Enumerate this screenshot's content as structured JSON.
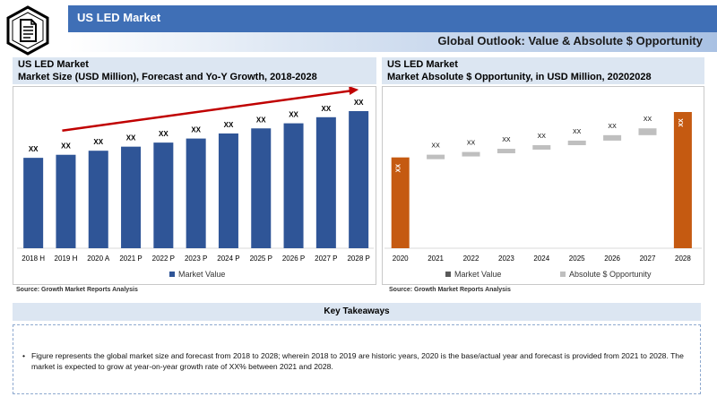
{
  "header": {
    "title": "US LED Market",
    "subtitle": "Global Outlook: Value & Absolute $ Opportunity",
    "logo_icon": "document-icon"
  },
  "left_panel": {
    "title_line1": "US LED Market",
    "title_line2": "Market Size (USD Million), Forecast and Yo-Y Growth, 2018-2028",
    "source": "Source: Growth Market Reports Analysis"
  },
  "right_panel": {
    "title_line1": "US LED Market",
    "title_line2": "Market Absolute $ Opportunity, in USD Million, 20202028",
    "source": "Source: Growth Market Reports Analysis"
  },
  "takeaways": {
    "title": "Key Takeaways",
    "bullet": "•",
    "text": "Figure represents the global market size and forecast from 2018 to 2028; wherein 2018 to 2019 are historic years, 2020 is the base/actual year and forecast is provided from 2021 to 2028. The market is expected to grow at year-on-year growth rate of XX% between 2021 and 2028."
  },
  "colors": {
    "header_blue": "#3f6fb6",
    "bar_blue": "#2f5597",
    "bar_orange": "#c55a11",
    "opportunity_gray": "#bfbfbf",
    "arrow_red": "#c00000"
  },
  "chart_data": [
    {
      "type": "bar",
      "categories": [
        "2018 H",
        "2019 H",
        "2020 A",
        "2021 P",
        "2022 P",
        "2023 P",
        "2024 P",
        "2025 P",
        "2026 P",
        "2027 P",
        "2028 P"
      ],
      "series": [
        {
          "name": "Market Value",
          "values": [
            89,
            92,
            96,
            100,
            104,
            108,
            113,
            118,
            123,
            129,
            135
          ]
        }
      ],
      "data_labels": [
        "XX",
        "XX",
        "XX",
        "XX",
        "XX",
        "XX",
        "XX",
        "XX",
        "XX",
        "XX",
        "XX"
      ],
      "ylim": [
        0,
        150
      ],
      "legend": "bottom",
      "trend_arrow": "increasing"
    },
    {
      "type": "bar",
      "subtype": "waterfall",
      "categories": [
        "2020",
        "2021",
        "2022",
        "2023",
        "2024",
        "2025",
        "2026",
        "2027",
        "2028"
      ],
      "series": [
        {
          "name": "Market Value",
          "values": [
            100,
            null,
            null,
            null,
            null,
            null,
            null,
            null,
            150
          ]
        },
        {
          "name": "Absolute $ Opportunity",
          "values": [
            null,
            3,
            3,
            3.5,
            4,
            5,
            6,
            7.5,
            null
          ]
        }
      ],
      "data_labels": [
        "XX",
        "XX",
        "XX",
        "XX",
        "XX",
        "XX",
        "XX",
        "XX",
        "XX"
      ],
      "ylim": [
        0,
        150
      ],
      "legend": "bottom"
    }
  ]
}
